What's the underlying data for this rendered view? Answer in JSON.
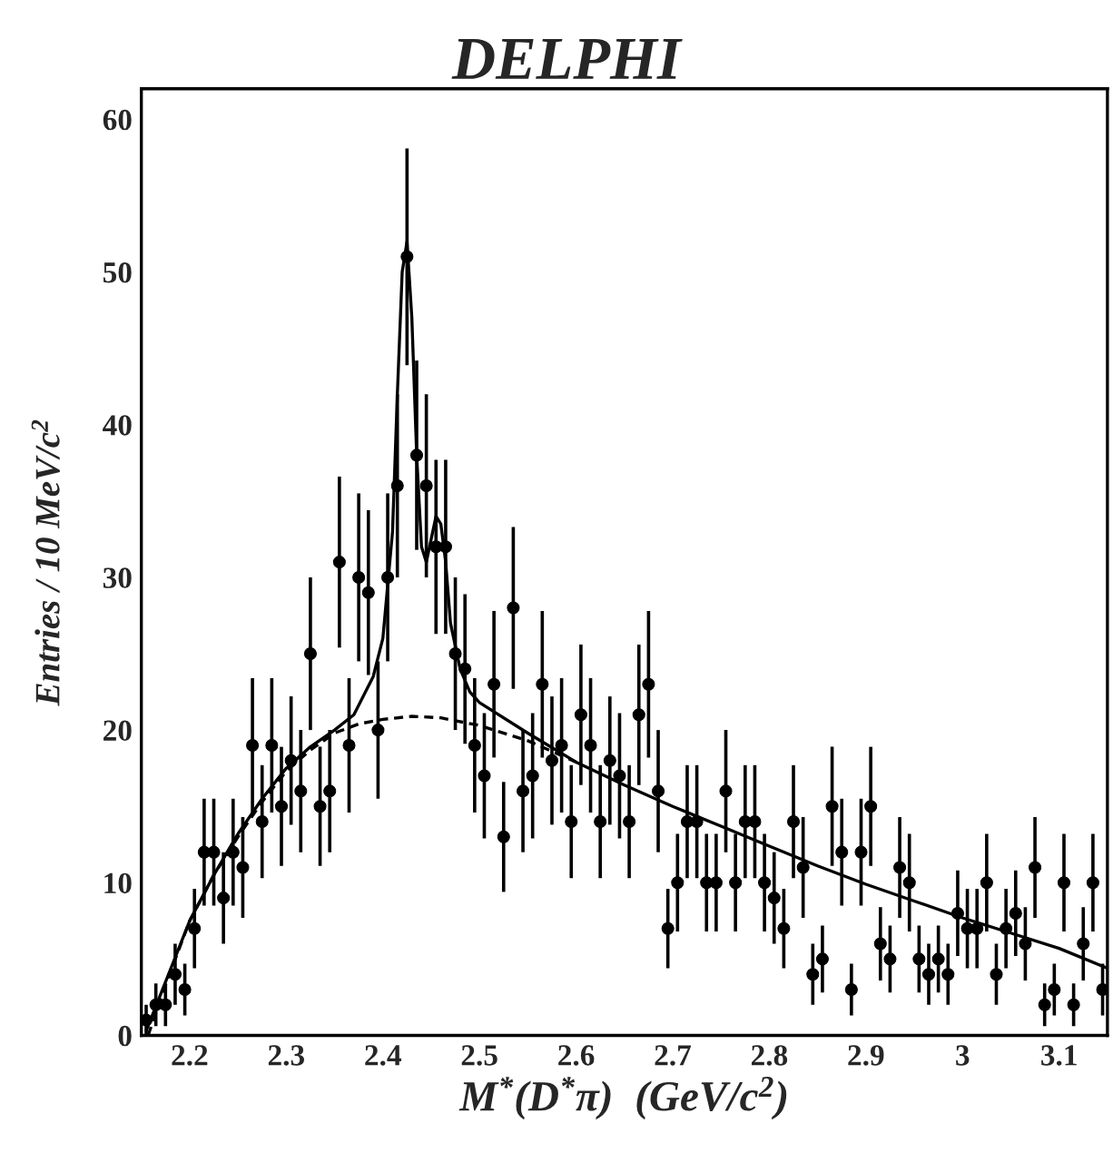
{
  "chart_data": {
    "type": "scatter",
    "title": "DELPHI",
    "xlabel": "M$^{*}$(D$^{*}$π)  (GeV/c$^{2}$)",
    "ylabel": "Entries / 10 MeV/c$^{2}$",
    "xlim": [
      2.15,
      3.15
    ],
    "ylim": [
      0,
      62
    ],
    "xticks": [
      2.2,
      2.3,
      2.4,
      2.5,
      2.6,
      2.7,
      2.8,
      2.9,
      3,
      3.1
    ],
    "yticks": [
      0,
      10,
      20,
      30,
      40,
      50,
      60
    ],
    "grid": false,
    "legend": false,
    "x": [
      2.155,
      2.165,
      2.175,
      2.185,
      2.195,
      2.205,
      2.215,
      2.225,
      2.235,
      2.245,
      2.255,
      2.265,
      2.275,
      2.285,
      2.295,
      2.305,
      2.315,
      2.325,
      2.335,
      2.345,
      2.355,
      2.365,
      2.375,
      2.385,
      2.395,
      2.405,
      2.415,
      2.425,
      2.435,
      2.445,
      2.455,
      2.465,
      2.475,
      2.485,
      2.495,
      2.505,
      2.515,
      2.525,
      2.535,
      2.545,
      2.555,
      2.565,
      2.575,
      2.585,
      2.595,
      2.605,
      2.615,
      2.625,
      2.635,
      2.645,
      2.655,
      2.665,
      2.675,
      2.685,
      2.695,
      2.705,
      2.715,
      2.725,
      2.735,
      2.745,
      2.755,
      2.765,
      2.775,
      2.785,
      2.795,
      2.805,
      2.815,
      2.825,
      2.835,
      2.845,
      2.855,
      2.865,
      2.875,
      2.885,
      2.895,
      2.905,
      2.915,
      2.925,
      2.935,
      2.945,
      2.955,
      2.965,
      2.975,
      2.985,
      2.995,
      3.005,
      3.015,
      3.025,
      3.035,
      3.045,
      3.055,
      3.065,
      3.075,
      3.085,
      3.095,
      3.105,
      3.115,
      3.125,
      3.135,
      3.145
    ],
    "series": [
      {
        "marker": "circle",
        "color": "#000000",
        "values": [
          1,
          2,
          2,
          4,
          3,
          7,
          12,
          12,
          9,
          12,
          11,
          19,
          14,
          19,
          15,
          18,
          16,
          25,
          15,
          16,
          31,
          19,
          30,
          29,
          20,
          30,
          36,
          51,
          38,
          36,
          32,
          32,
          25,
          24,
          19,
          17,
          23,
          13,
          28,
          16,
          17,
          23,
          18,
          19,
          14,
          21,
          19,
          14,
          18,
          17,
          14,
          21,
          23,
          16,
          7,
          10,
          14,
          14,
          10,
          10,
          16,
          10,
          14,
          14,
          10,
          9,
          7,
          14,
          11,
          4,
          5,
          15,
          12,
          3,
          12,
          15,
          6,
          5,
          11,
          10,
          5,
          4,
          5,
          4,
          8,
          7,
          7,
          10,
          4,
          7,
          8,
          6,
          11,
          2,
          3,
          10,
          2,
          6,
          10,
          3
        ],
        "errors": [
          1.0,
          1.4,
          1.4,
          2.0,
          1.7,
          2.6,
          3.5,
          3.5,
          3.0,
          3.5,
          3.3,
          4.4,
          3.7,
          4.4,
          3.9,
          4.2,
          4.0,
          5.0,
          3.9,
          4.0,
          5.6,
          4.4,
          5.5,
          5.4,
          4.5,
          5.5,
          6.0,
          7.1,
          6.2,
          6.0,
          5.7,
          5.7,
          5.0,
          4.9,
          4.4,
          4.1,
          4.8,
          3.6,
          5.3,
          4.0,
          4.1,
          4.8,
          4.2,
          4.4,
          3.7,
          4.6,
          4.4,
          3.7,
          4.2,
          4.1,
          3.7,
          4.6,
          4.8,
          4.0,
          2.6,
          3.2,
          3.7,
          3.7,
          3.2,
          3.2,
          4.0,
          3.2,
          3.7,
          3.7,
          3.2,
          3.0,
          2.6,
          3.7,
          3.3,
          2.0,
          2.2,
          3.9,
          3.5,
          1.7,
          3.5,
          3.9,
          2.4,
          2.2,
          3.3,
          3.2,
          2.2,
          2.0,
          2.2,
          2.0,
          2.8,
          2.6,
          2.6,
          3.2,
          2.0,
          2.6,
          2.8,
          2.4,
          3.3,
          1.4,
          1.7,
          3.2,
          1.4,
          2.4,
          3.2,
          1.7
        ]
      },
      {
        "type": "line",
        "color": "#000000",
        "line_style": "solid",
        "x": [
          2.155,
          2.175,
          2.2,
          2.225,
          2.25,
          2.275,
          2.3,
          2.325,
          2.35,
          2.37,
          2.39,
          2.4,
          2.41,
          2.415,
          2.42,
          2.425,
          2.43,
          2.435,
          2.44,
          2.445,
          2.45,
          2.455,
          2.46,
          2.465,
          2.47,
          2.48,
          2.49,
          2.5,
          2.55,
          2.6,
          2.65,
          2.7,
          2.75,
          2.8,
          2.85,
          2.9,
          2.95,
          3.0,
          3.05,
          3.1,
          3.15
        ],
        "values": [
          0.3,
          3.5,
          7.5,
          10.5,
          13.2,
          15.5,
          17.5,
          18.9,
          20.0,
          21.0,
          23.5,
          26,
          33,
          42,
          50,
          52,
          47,
          38,
          32,
          31,
          32.5,
          34,
          33.5,
          31,
          27,
          24,
          22.5,
          21.8,
          19.8,
          17.9,
          16.4,
          15.0,
          13.7,
          12.4,
          11.1,
          9.9,
          8.8,
          7.7,
          6.7,
          5.7,
          4.4
        ]
      },
      {
        "type": "line",
        "color": "#000000",
        "line_style": "dashed",
        "x": [
          2.157,
          2.175,
          2.2,
          2.225,
          2.25,
          2.275,
          2.3,
          2.325,
          2.35,
          2.375,
          2.4,
          2.43,
          2.46,
          2.5,
          2.55,
          2.6
        ],
        "values": [
          0,
          3.3,
          7.5,
          10.5,
          13.0,
          15.3,
          17.3,
          18.7,
          19.8,
          20.4,
          20.7,
          20.9,
          20.8,
          20.3,
          19.3,
          17.9
        ]
      }
    ]
  }
}
